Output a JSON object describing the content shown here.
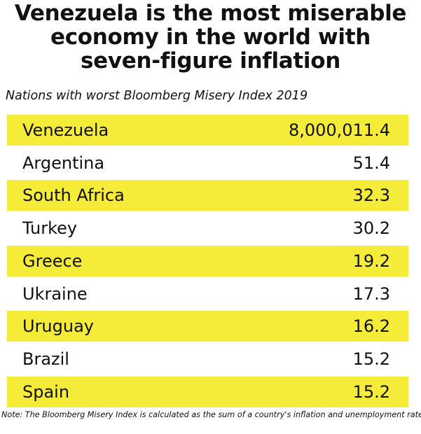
{
  "title_line1": "Venezuela is the most miserable",
  "title_line2": "economy in the world with",
  "title_line3": "seven-figure inflation",
  "subtitle": "Nations with worst Bloomberg Misery Index 2019",
  "note": "Note: The Bloomberg Misery Index is calculated as the sum of a country's inflation and unemployment rates.",
  "colors": {
    "highlight": "#f5ec3a",
    "text": "#111111",
    "background": "#ffffff"
  },
  "chart_data": {
    "type": "table",
    "title": "Venezuela is the most miserable economy in the world with seven-figure inflation",
    "subtitle": "Nations with worst Bloomberg Misery Index 2019",
    "categories": [
      "Venezuela",
      "Argentina",
      "South Africa",
      "Turkey",
      "Greece",
      "Ukraine",
      "Uruguay",
      "Brazil",
      "Spain"
    ],
    "values": [
      8000011.4,
      51.4,
      32.3,
      30.2,
      19.2,
      17.3,
      16.2,
      15.2,
      15.2
    ],
    "value_labels": [
      "8,000,011.4",
      "51.4",
      "32.3",
      "30.2",
      "19.2",
      "17.3",
      "16.2",
      "15.2",
      "15.2"
    ],
    "highlighted_rows": [
      true,
      false,
      true,
      false,
      true,
      false,
      true,
      false,
      true
    ]
  }
}
